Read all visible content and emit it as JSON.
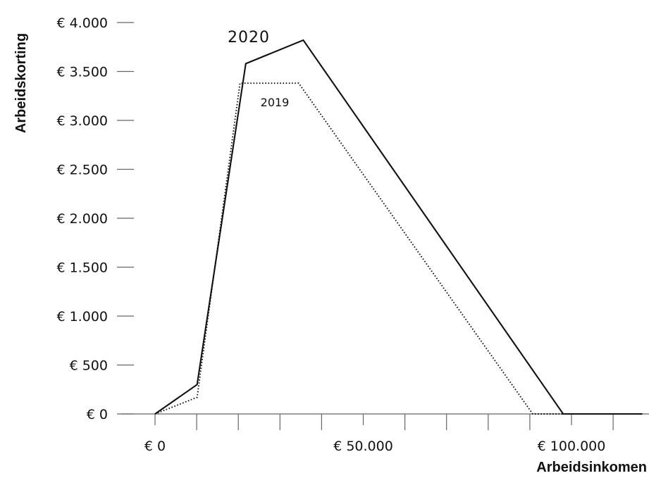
{
  "chart_data": {
    "type": "line",
    "xlabel": "Arbeidsinkomen",
    "ylabel": "Arbeidskorting",
    "xlim": [
      0,
      100000
    ],
    "ylim": [
      0,
      4000
    ],
    "x_ticks": [
      0,
      10000,
      20000,
      30000,
      40000,
      50000,
      60000,
      70000,
      80000,
      90000,
      100000,
      110000
    ],
    "x_tick_labels": [
      {
        "value": 0,
        "label": "€ 0"
      },
      {
        "value": 50000,
        "label": "€ 50.000"
      },
      {
        "value": 100000,
        "label": "€ 100.000"
      }
    ],
    "y_ticks": [
      {
        "value": 0,
        "label": "€ 0"
      },
      {
        "value": 500,
        "label": "€ 500"
      },
      {
        "value": 1000,
        "label": "€ 1.000"
      },
      {
        "value": 1500,
        "label": "€ 1.500"
      },
      {
        "value": 2000,
        "label": "€ 2.000"
      },
      {
        "value": 2500,
        "label": "€ 2.500"
      },
      {
        "value": 3000,
        "label": "€ 3.000"
      },
      {
        "value": 3500,
        "label": "€ 3.500"
      },
      {
        "value": 4000,
        "label": "€ 4.000"
      }
    ],
    "grid": false,
    "series": [
      {
        "name": "2020",
        "style": "solid",
        "color": "#111111",
        "points": [
          {
            "x": 0,
            "y": 0
          },
          {
            "x": 10100,
            "y": 300
          },
          {
            "x": 21800,
            "y": 3580
          },
          {
            "x": 35600,
            "y": 3820
          },
          {
            "x": 98000,
            "y": 0
          },
          {
            "x": 117000,
            "y": 0
          }
        ]
      },
      {
        "name": "2019",
        "style": "dotted",
        "color": "#111111",
        "points": [
          {
            "x": 0,
            "y": 0
          },
          {
            "x": 10100,
            "y": 170
          },
          {
            "x": 20400,
            "y": 3380
          },
          {
            "x": 34500,
            "y": 3380
          },
          {
            "x": 90700,
            "y": 0
          },
          {
            "x": 117000,
            "y": 0
          }
        ]
      }
    ]
  }
}
